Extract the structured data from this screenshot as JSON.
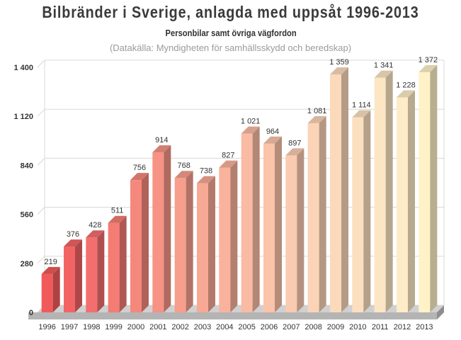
{
  "chart_data": {
    "type": "bar",
    "title": "Bilbränder i Sverige, anlagda med uppsåt 1996-2013",
    "subtitle": "Personbilar samt övriga vägfordon",
    "source": "(Datakälla: Myndigheten för samhällsskydd och beredskap)",
    "xlabel": "",
    "ylabel": "",
    "categories": [
      "1996",
      "1997",
      "1998",
      "1999",
      "2000",
      "2001",
      "2002",
      "2003",
      "2004",
      "2005",
      "2006",
      "2007",
      "2008",
      "2009",
      "2010",
      "2011",
      "2012",
      "2013"
    ],
    "values": [
      219,
      376,
      428,
      511,
      756,
      914,
      768,
      738,
      827,
      1021,
      964,
      897,
      1081,
      1359,
      1114,
      1341,
      1228,
      1372
    ],
    "value_labels": [
      "219",
      "376",
      "428",
      "511",
      "756",
      "914",
      "768",
      "738",
      "827",
      "1 021",
      "964",
      "897",
      "1 081",
      "1 359",
      "1 114",
      "1 341",
      "1 228",
      "1 372"
    ],
    "ylim": [
      0,
      1400
    ],
    "yticks": [
      0,
      280,
      560,
      840,
      1120,
      1400
    ],
    "ytick_labels": [
      "0",
      "280",
      "560",
      "840",
      "1 120",
      "1 400"
    ],
    "grid": true,
    "legend": "none",
    "colors": {
      "bars": [
        "#f15a5a",
        "#f26464",
        "#f36e6e",
        "#f47c74",
        "#f5887c",
        "#f69384",
        "#f79e8d",
        "#f8a995",
        "#f9b29c",
        "#f9bba3",
        "#fac3aa",
        "#facbb0",
        "#fbd3b6",
        "#fbd9bb",
        "#fbe0c0",
        "#fce6c4",
        "#fdecc7",
        "#fff2c8"
      ],
      "grid": "#d8d8d0",
      "floor": "#b4b4b4",
      "wall": "#ffffff"
    }
  }
}
